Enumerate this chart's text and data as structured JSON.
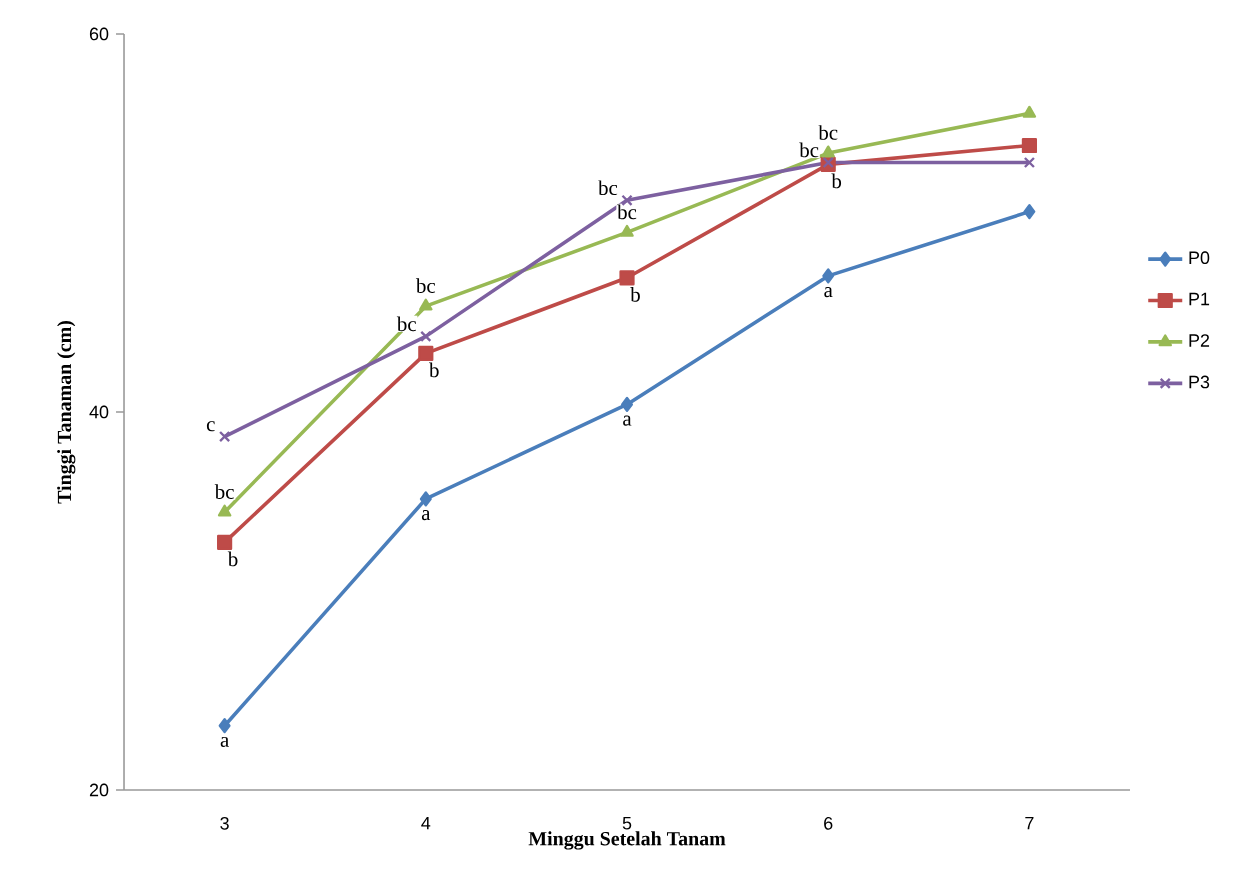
{
  "chart_data": {
    "type": "line",
    "xlabel": "Minggu Setelah Tanam",
    "ylabel": "Tinggi Tanaman (cm)",
    "categories": [
      "3",
      "4",
      "5",
      "6",
      "7"
    ],
    "ylim": [
      20,
      60
    ],
    "yticks": [
      20,
      40,
      60
    ],
    "grid": false,
    "legend": "right",
    "line_style": "solid",
    "series": [
      {
        "name": "P0",
        "color": "#4a7ebb",
        "marker": "diamond",
        "values": [
          23.4,
          35.4,
          40.4,
          47.2,
          50.6
        ]
      },
      {
        "name": "P1",
        "color": "#be4b48",
        "marker": "square",
        "values": [
          33.1,
          43.1,
          47.1,
          53.1,
          54.1
        ]
      },
      {
        "name": "P2",
        "color": "#98b954",
        "marker": "triangle",
        "values": [
          34.7,
          45.6,
          49.5,
          53.7,
          55.8
        ]
      },
      {
        "name": "P3",
        "color": "#7d60a0",
        "marker": "cross",
        "values": [
          38.7,
          44.0,
          51.2,
          53.2,
          53.2
        ]
      }
    ],
    "annotations": [
      {
        "text": "a",
        "x": "3",
        "y": 23.4
      },
      {
        "text": "b",
        "x": "3",
        "y": 33.1
      },
      {
        "text": "bc",
        "x": "3",
        "y": 34.7
      },
      {
        "text": "c",
        "x": "3",
        "y": 38.7
      },
      {
        "text": "a",
        "x": "4",
        "y": 35.4
      },
      {
        "text": "b",
        "x": "4",
        "y": 43.1
      },
      {
        "text": "bc",
        "x": "4",
        "y": 45.6
      },
      {
        "text": "bc",
        "x": "4",
        "y": 44.0
      },
      {
        "text": "a",
        "x": "5",
        "y": 40.4
      },
      {
        "text": "b",
        "x": "5",
        "y": 47.1
      },
      {
        "text": "bc",
        "x": "5",
        "y": 49.5
      },
      {
        "text": "bc",
        "x": "5",
        "y": 51.2
      },
      {
        "text": "a",
        "x": "6",
        "y": 47.2
      },
      {
        "text": "b",
        "x": "6",
        "y": 53.1
      },
      {
        "text": "bc",
        "x": "6",
        "y": 53.7
      },
      {
        "text": "bc",
        "x": "6",
        "y": 53.2
      }
    ]
  }
}
